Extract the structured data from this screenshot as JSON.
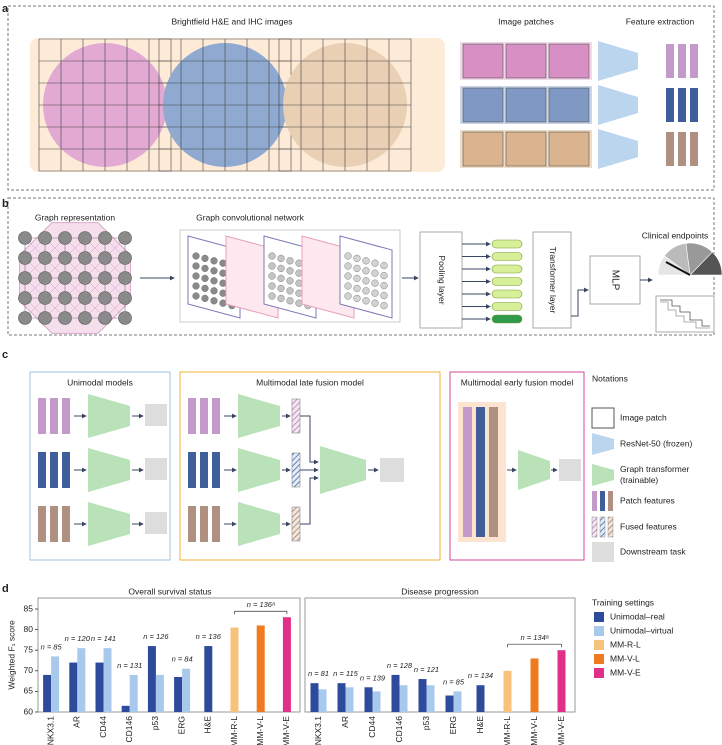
{
  "panels": {
    "a": {
      "label": "a",
      "images_title": "Brightfield H&E and IHC images",
      "patches_title": "Image patches",
      "features_title": "Feature extraction"
    },
    "b": {
      "label": "b",
      "graph_title": "Graph representation",
      "gcn_title": "Graph convolutional network",
      "pooling": "Pooling layer",
      "transformer": "Transformer layer",
      "mlp": "MLP",
      "endpoints_title": "Clinical endpoints"
    },
    "c": {
      "label": "c",
      "unimodal_title": "Unimodal models",
      "late_title": "Multimodal late fusion model",
      "early_title": "Multimodal early fusion model",
      "notations_title": "Notations",
      "notations": [
        [
          "Image patch"
        ],
        [
          "ResNet-50 (frozen)"
        ],
        [
          "Graph transformer",
          "(trainable)"
        ],
        [
          "Patch features"
        ],
        [
          "Fused features"
        ],
        [
          "Downstream task"
        ]
      ]
    },
    "d": {
      "label": "d"
    }
  },
  "chart_data": [
    {
      "type": "bar",
      "title": "Overall survival status",
      "ylabel": "Weighted F₁ score",
      "legend_title": "Training settings",
      "categories": [
        "NKX3.1",
        "AR",
        "CD44",
        "CD146",
        "p53",
        "ERG",
        "H&E",
        "MM-R-L",
        "MM-V-L",
        "MM-V-E"
      ],
      "series": [
        {
          "name": "Unimodal–real",
          "color": "#2e4a9a",
          "values": [
            69,
            72,
            72,
            61.5,
            76,
            68.5,
            76,
            null,
            null,
            null
          ]
        },
        {
          "name": "Unimodal–virtual",
          "color": "#a9c9ec",
          "values": [
            73.5,
            75.5,
            75.5,
            69,
            69,
            70.5,
            null,
            null,
            null,
            null
          ]
        },
        {
          "name": "MM-R-L",
          "color": "#f7c27c",
          "values": [
            null,
            null,
            null,
            null,
            null,
            null,
            null,
            80.5,
            null,
            null
          ]
        },
        {
          "name": "MM-V-L",
          "color": "#f07a1f",
          "values": [
            null,
            null,
            null,
            null,
            null,
            null,
            null,
            null,
            81,
            null
          ]
        },
        {
          "name": "MM-V-E",
          "color": "#e0308a",
          "values": [
            null,
            null,
            null,
            null,
            null,
            null,
            null,
            null,
            null,
            83
          ]
        }
      ],
      "ylim": [
        60,
        85
      ],
      "yticks": [
        60,
        65,
        70,
        75,
        80,
        85
      ],
      "annotations": [
        "n = 85",
        "n = 120",
        "n = 141",
        "n = 131",
        "n = 126",
        "n = 84",
        "n = 136",
        "n = 136ᵃ"
      ]
    },
    {
      "type": "bar",
      "title": "Disease progression",
      "categories": [
        "NKX3.1",
        "AR",
        "CD44",
        "CD146",
        "p53",
        "ERG",
        "H&E",
        "MM-R-L",
        "MM-V-L",
        "MM-V-E"
      ],
      "series": [
        {
          "color": "#2e4a9a",
          "values": [
            67,
            67,
            66,
            69,
            68,
            64,
            66.5,
            null,
            null,
            null
          ]
        },
        {
          "color": "#a9c9ec",
          "values": [
            65.5,
            66,
            65,
            66.5,
            66.5,
            65,
            null,
            null,
            null,
            null
          ]
        },
        {
          "color": "#f7c27c",
          "values": [
            null,
            null,
            null,
            null,
            null,
            null,
            null,
            70,
            null,
            null
          ]
        },
        {
          "color": "#f07a1f",
          "values": [
            null,
            null,
            null,
            null,
            null,
            null,
            null,
            null,
            73,
            null
          ]
        },
        {
          "color": "#e0308a",
          "values": [
            null,
            null,
            null,
            null,
            null,
            null,
            null,
            null,
            null,
            75
          ]
        }
      ],
      "ylim": [
        60,
        85
      ],
      "annotations": [
        "n = 81",
        "n = 115",
        "n = 139",
        "n = 128",
        "n = 121",
        "n = 85",
        "n = 134",
        "n = 134ᵃ"
      ]
    }
  ]
}
